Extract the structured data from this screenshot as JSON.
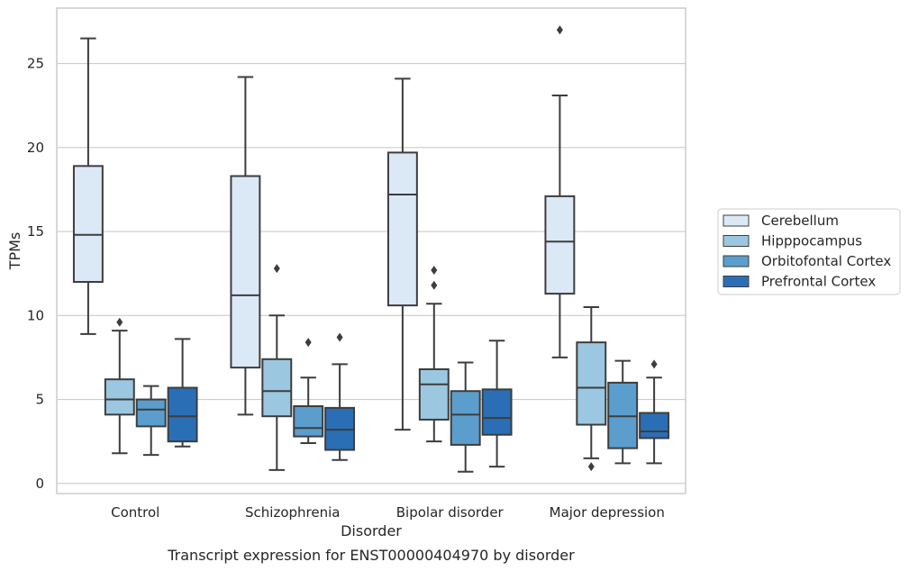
{
  "chart_data": {
    "type": "box",
    "title": "",
    "caption": "Transcript expression for ENST00000404970 by disorder",
    "xlabel": "Disorder",
    "ylabel": "TPMs",
    "ylim": [
      -0.6,
      28.3
    ],
    "yticks": [
      0,
      5,
      10,
      15,
      20,
      25
    ],
    "grid": "horizontal",
    "legend_position": "right",
    "categories": [
      "Control",
      "Schizophrenia",
      "Bipolar disorder",
      "Major depression"
    ],
    "series": [
      {
        "name": "Cerebellum",
        "color": "#dbe9f6",
        "boxes": [
          {
            "whislo": 8.9,
            "q1": 12.0,
            "med": 14.8,
            "q3": 18.9,
            "whishi": 26.5,
            "fliers": []
          },
          {
            "whislo": 4.1,
            "q1": 6.9,
            "med": 11.2,
            "q3": 18.3,
            "whishi": 24.2,
            "fliers": []
          },
          {
            "whislo": 3.2,
            "q1": 10.6,
            "med": 17.2,
            "q3": 19.7,
            "whishi": 24.1,
            "fliers": []
          },
          {
            "whislo": 7.5,
            "q1": 11.3,
            "med": 14.4,
            "q3": 17.1,
            "whishi": 23.1,
            "fliers": [
              27.0
            ]
          }
        ]
      },
      {
        "name": "Hipppocampus",
        "color": "#9bc8e0",
        "boxes": [
          {
            "whislo": 1.8,
            "q1": 4.1,
            "med": 5.0,
            "q3": 6.2,
            "whishi": 9.1,
            "fliers": [
              9.6
            ]
          },
          {
            "whislo": 0.8,
            "q1": 4.0,
            "med": 5.5,
            "q3": 7.4,
            "whishi": 10.0,
            "fliers": [
              12.8
            ]
          },
          {
            "whislo": 2.5,
            "q1": 3.8,
            "med": 5.9,
            "q3": 6.8,
            "whishi": 10.7,
            "fliers": [
              11.8,
              12.7
            ]
          },
          {
            "whislo": 1.5,
            "q1": 3.5,
            "med": 5.7,
            "q3": 8.4,
            "whishi": 10.5,
            "fliers": [
              1.0
            ]
          }
        ]
      },
      {
        "name": "Orbitofontal Cortex",
        "color": "#5b9ecd",
        "boxes": [
          {
            "whislo": 1.7,
            "q1": 3.4,
            "med": 4.4,
            "q3": 5.0,
            "whishi": 5.8,
            "fliers": []
          },
          {
            "whislo": 2.4,
            "q1": 2.8,
            "med": 3.3,
            "q3": 4.6,
            "whishi": 6.3,
            "fliers": [
              8.4
            ]
          },
          {
            "whislo": 0.7,
            "q1": 2.3,
            "med": 4.1,
            "q3": 5.5,
            "whishi": 7.2,
            "fliers": []
          },
          {
            "whislo": 1.2,
            "q1": 2.1,
            "med": 4.0,
            "q3": 6.0,
            "whishi": 7.3,
            "fliers": []
          }
        ]
      },
      {
        "name": "Prefrontal Cortex",
        "color": "#2a6fb5",
        "boxes": [
          {
            "whislo": 2.2,
            "q1": 2.5,
            "med": 4.0,
            "q3": 5.7,
            "whishi": 8.6,
            "fliers": []
          },
          {
            "whislo": 1.4,
            "q1": 2.0,
            "med": 3.2,
            "q3": 4.5,
            "whishi": 7.1,
            "fliers": [
              8.7
            ]
          },
          {
            "whislo": 1.0,
            "q1": 2.9,
            "med": 3.9,
            "q3": 5.6,
            "whishi": 8.5,
            "fliers": []
          },
          {
            "whislo": 1.2,
            "q1": 2.7,
            "med": 3.1,
            "q3": 4.2,
            "whishi": 6.3,
            "fliers": [
              7.1
            ]
          }
        ]
      }
    ]
  }
}
